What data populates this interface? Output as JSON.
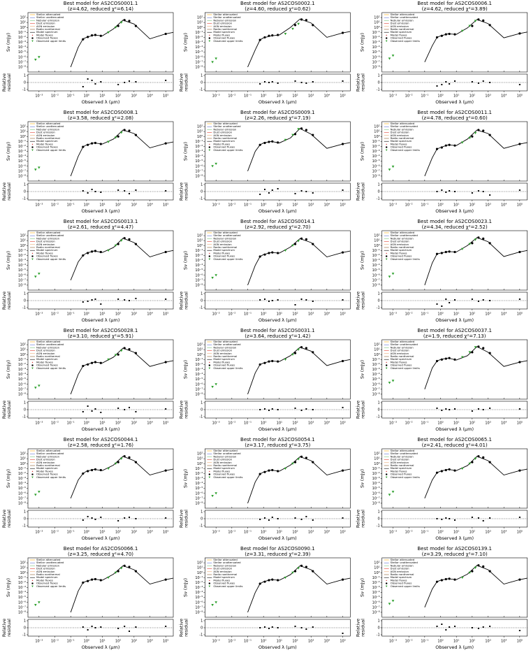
{
  "chart_data": {
    "type": "sed-grid",
    "xlabel": "Observed λ (μm)",
    "ylabel": "Sν (mJy)",
    "residual_label": [
      "Relative",
      "residual"
    ],
    "xlim": [
      0.0002,
      300000
    ],
    "xticks": [
      {
        "value": 0.001,
        "label": "10⁻³"
      },
      {
        "value": 0.01,
        "label": "10⁻²"
      },
      {
        "value": 0.1,
        "label": "10⁻¹"
      },
      {
        "value": 1,
        "label": "10⁰"
      },
      {
        "value": 10,
        "label": "10¹"
      },
      {
        "value": 100,
        "label": "10²"
      },
      {
        "value": 1000,
        "label": "10³"
      },
      {
        "value": 10000,
        "label": "10⁴"
      },
      {
        "value": 100000,
        "label": "10⁵"
      }
    ],
    "ylim": [
      1e-09,
      1000
    ],
    "yticks": [
      {
        "value": 1e-08,
        "label": "10⁻⁸"
      },
      {
        "value": 1e-07,
        "label": "10⁻⁷"
      },
      {
        "value": 1e-06,
        "label": "10⁻⁶"
      },
      {
        "value": 1e-05,
        "label": "10⁻⁵"
      },
      {
        "value": 0.0001,
        "label": "10⁻⁴"
      },
      {
        "value": 0.001,
        "label": "10⁻³"
      },
      {
        "value": 0.01,
        "label": "10⁻²"
      },
      {
        "value": 0.1,
        "label": "10⁻¹"
      },
      {
        "value": 1,
        "label": "10⁰"
      },
      {
        "value": 10,
        "label": "10¹"
      },
      {
        "value": 100,
        "label": "10²"
      }
    ],
    "residual_ylim": [
      -1.2,
      1.2
    ],
    "residual_yticks": [
      -1,
      0,
      1
    ],
    "legend": [
      {
        "name": "Stellar attenuated",
        "color": "#ffa500",
        "style": "line"
      },
      {
        "name": "Stellar unattenuated",
        "color": "#5b6fd6",
        "style": "line"
      },
      {
        "name": "Nebular emission",
        "color": "#7cc47c",
        "style": "line"
      },
      {
        "name": "Dust emission",
        "color": "#e03c31",
        "style": "line"
      },
      {
        "name": "AGN emission",
        "color": "#e8a36a",
        "style": "line"
      },
      {
        "name": "Radio nonthermal",
        "color": "#8b5a2b",
        "style": "line"
      },
      {
        "name": "Model spectrum",
        "color": "#000000",
        "style": "line"
      },
      {
        "name": "Model fluxes",
        "color": "#d62728",
        "style": "dot"
      },
      {
        "name": "Observed fluxes",
        "color": "#000000",
        "style": "circle"
      },
      {
        "name": "Observed upper limits",
        "color": "#2ca02c",
        "style": "triangle"
      }
    ],
    "model_x": [
      0.1,
      0.3,
      0.6,
      1,
      3,
      10,
      50,
      200,
      1000,
      10000,
      100000,
      300000
    ],
    "observed_x": [
      0.6,
      1.2,
      2.2,
      3.6,
      8,
      100,
      250,
      500,
      1300,
      100000
    ],
    "upper_limit_x": [
      0.0006,
      0.001,
      24,
      70,
      160
    ],
    "panels": [
      {
        "title": "Best model for AS2COS0001.1",
        "subtitle": "(z=4.62, reduced χ²=6.14)",
        "model": [
          1e-08,
          0.0001,
          0.005,
          0.01,
          0.03,
          0.02,
          0.5,
          30,
          5,
          0.005,
          0.05,
          0.1
        ],
        "observed": [
          0.004,
          0.012,
          0.025,
          0.03,
          0.02,
          2,
          30,
          20,
          2,
          0.05
        ],
        "residuals": [
          -0.6,
          0.5,
          0.3,
          -0.2,
          0.1,
          -0.3,
          0,
          0.2,
          0.1,
          0.3
        ],
        "upper_limits": [
          3e-07,
          1e-06,
          0.1,
          1,
          10
        ]
      },
      {
        "title": "Best model for AS2COS0002.1",
        "subtitle": "(z=4.60, reduced χ²=0.62)",
        "model": [
          1e-08,
          3e-05,
          0.003,
          0.008,
          0.02,
          0.03,
          1,
          50,
          8,
          0.01,
          0.08,
          0.15
        ],
        "observed": [
          0.003,
          0.01,
          0.02,
          0.025,
          0.03,
          3,
          40,
          30,
          3,
          0.08
        ],
        "residuals": [
          -0.2,
          0.1,
          0,
          0.1,
          -0.1,
          0.2,
          0,
          -0.1,
          0.1,
          0.2
        ],
        "upper_limits": [
          1e-07,
          5e-07,
          0.05,
          0.5,
          5
        ]
      },
      {
        "title": "Best model for AS2COS0006.1",
        "subtitle": "(z=4.62, reduced χ²=3.89)",
        "model": [
          1e-07,
          0.0002,
          0.01,
          0.02,
          0.05,
          0.04,
          0.8,
          40,
          6,
          0.008,
          0.06,
          0.12
        ],
        "observed": [
          0.01,
          0.02,
          0.04,
          0.05,
          0.04,
          2,
          40,
          25,
          3,
          0.06
        ],
        "residuals": [
          -0.5,
          -0.3,
          0.1,
          -0.2,
          0.2,
          0.1,
          -0.1,
          0.2,
          0,
          -0.3
        ],
        "upper_limits": [
          5e-07,
          2e-06,
          0.2,
          2,
          20
        ]
      },
      {
        "title": "Best model for AS2COS0008.1",
        "subtitle": "(z=3.58, reduced χ²=2.08)",
        "model": [
          1e-08,
          0.0001,
          0.008,
          0.02,
          0.05,
          0.03,
          0.3,
          20,
          4,
          0.005,
          0.04,
          0.08
        ],
        "observed": [
          0.008,
          0.02,
          0.04,
          0.05,
          0.03,
          1,
          20,
          15,
          2,
          0.04
        ],
        "residuals": [
          0.1,
          -0.2,
          0.3,
          0,
          -0.1,
          0.2,
          0.1,
          -0.3,
          0.2,
          0.1
        ],
        "upper_limits": [
          2e-07,
          5e-07,
          0.08,
          0.6,
          6
        ]
      },
      {
        "title": "Best model for AS2COS0009.1",
        "subtitle": "(z=2.26, reduced χ²=7.19)",
        "model": [
          1e-07,
          0.001,
          0.02,
          0.05,
          0.1,
          0.05,
          0.5,
          40,
          3,
          0.004,
          0.03,
          0.06
        ],
        "observed": [
          0.02,
          0.05,
          0.08,
          0.1,
          0.06,
          3,
          40,
          20,
          2,
          0.03
        ],
        "residuals": [
          -0.4,
          0.3,
          -0.2,
          0.2,
          0.4,
          -0.3,
          0.1,
          0,
          -0.2,
          0.2
        ],
        "upper_limits": [
          1e-06,
          3e-06,
          0.2,
          2,
          30
        ]
      },
      {
        "title": "Best model for AS2COS0011.1",
        "subtitle": "(z=4.78, reduced χ²=0.60)",
        "model": [
          1e-08,
          5e-05,
          0.003,
          0.006,
          0.02,
          0.015,
          0.3,
          20,
          4,
          0.004,
          0.03,
          0.06
        ],
        "observed": [
          0.003,
          0.006,
          0.015,
          0.02,
          0.015,
          1,
          20,
          15,
          2,
          0.03
        ],
        "residuals": [
          0,
          0.2,
          -0.1,
          0.1,
          0,
          -0.2,
          0.1,
          0,
          -0.5,
          0.2
        ],
        "upper_limits": [
          2e-07,
          8e-07,
          0.06,
          0.5,
          5
        ]
      },
      {
        "title": "Best model for AS2COS0013.1",
        "subtitle": "(z=2.61, reduced χ²=4.47)",
        "model": [
          1e-07,
          0.0005,
          0.01,
          0.03,
          0.08,
          0.04,
          0.4,
          30,
          4,
          0.005,
          0.05,
          0.1
        ],
        "observed": [
          0.01,
          0.03,
          0.06,
          0.08,
          0.05,
          2,
          30,
          18,
          2,
          0.05
        ],
        "residuals": [
          -0.2,
          -0.1,
          0.1,
          0.2,
          -0.5,
          0.2,
          0.1,
          0,
          0.3,
          0.2
        ],
        "upper_limits": [
          5e-07,
          2e-06,
          0.1,
          1,
          10
        ]
      },
      {
        "title": "Best model for AS2COS0014.1",
        "subtitle": "(z=2.92, reduced χ²=2.70)",
        "model": [
          1e-08,
          0.0001,
          0.006,
          0.015,
          0.04,
          0.03,
          0.5,
          25,
          4,
          0.005,
          0.04,
          0.08
        ],
        "observed": [
          0.006,
          0.015,
          0.03,
          0.04,
          0.03,
          2,
          25,
          18,
          2,
          0.04
        ],
        "residuals": [
          0.1,
          0.2,
          -0.1,
          0,
          0.1,
          -0.6,
          0.2,
          0.1,
          -0.1,
          0.1
        ],
        "upper_limits": [
          3e-07,
          1e-06,
          0.1,
          1,
          8
        ]
      },
      {
        "title": "Best model for AS2COS0023.1",
        "subtitle": "(z=4.34, reduced χ²=2.52)",
        "model": [
          1e-08,
          0.0003,
          0.02,
          0.03,
          0.06,
          0.05,
          1,
          40,
          6,
          0.006,
          0.05,
          0.1
        ],
        "observed": [
          0.02,
          0.03,
          0.05,
          0.06,
          0.05,
          3,
          40,
          25,
          3,
          0.05
        ],
        "residuals": [
          -0.5,
          -0.8,
          0.2,
          -0.3,
          0.1,
          0.2,
          -0.1,
          0.1,
          0,
          0.2
        ],
        "upper_limits": [
          5e-07,
          2e-06,
          0.2,
          2,
          15
        ]
      },
      {
        "title": "Best model for AS2COS0028.1",
        "subtitle": "(z=3.10, reduced χ²=5.91)",
        "model": [
          1e-08,
          0.0001,
          0.005,
          0.01,
          0.03,
          0.02,
          0.3,
          20,
          3,
          0.004,
          0.03,
          0.06
        ],
        "observed": [
          0.005,
          0.01,
          0.02,
          0.03,
          0.02,
          1,
          20,
          12,
          2,
          0.03
        ],
        "residuals": [
          -0.3,
          0.5,
          -0.2,
          0.1,
          -0.4,
          0.2,
          0,
          0.3,
          -0.3,
          0.1
        ],
        "upper_limits": [
          2e-07,
          5e-07,
          0.1,
          0.8,
          6
        ]
      },
      {
        "title": "Best model for AS2COS0031.1",
        "subtitle": "(z=3.64, reduced χ²=1.42)",
        "model": [
          1e-08,
          0.0002,
          0.01,
          0.02,
          0.05,
          0.04,
          0.6,
          30,
          5,
          0.006,
          0.05,
          0.1
        ],
        "observed": [
          0.01,
          0.02,
          0.04,
          0.05,
          0.04,
          2,
          30,
          20,
          3,
          0.05
        ],
        "residuals": [
          0,
          0.1,
          -0.1,
          0.1,
          0,
          0.2,
          -0.1,
          0.1,
          0,
          0.3
        ],
        "upper_limits": [
          3e-07,
          1e-06,
          0.1,
          1,
          10
        ]
      },
      {
        "title": "Best model for AS2COS0037.1",
        "subtitle": "(z=1.9, reduced χ²=7.13)",
        "model": [
          1e-07,
          0.002,
          0.05,
          0.1,
          0.2,
          0.08,
          0.6,
          40,
          3,
          0.004,
          0.03,
          0.06
        ],
        "observed": [
          0.05,
          0.1,
          0.15,
          0.2,
          0.1,
          3,
          40,
          20,
          2,
          0.03
        ],
        "residuals": [
          0.2,
          -0.1,
          0.1,
          0,
          0.1,
          -0.2,
          0.1,
          0,
          0.2,
          0.1
        ],
        "upper_limits": [
          2e-06,
          5e-06,
          0.3,
          3,
          30
        ]
      },
      {
        "title": "Best model for AS2COS0044.1",
        "subtitle": "(z=2.58, reduced χ²=1.76)",
        "model": [
          1e-07,
          0.0005,
          0.01,
          0.03,
          0.07,
          0.04,
          0.5,
          30,
          4,
          0.005,
          0.04,
          0.08
        ],
        "observed": [
          0.01,
          0.03,
          0.05,
          0.07,
          0.05,
          2,
          30,
          18,
          2,
          0.04
        ],
        "residuals": [
          -0.2,
          0.3,
          0.1,
          -0.1,
          0.2,
          -0.3,
          0.1,
          0.2,
          0,
          0.1
        ],
        "upper_limits": [
          5e-07,
          2e-06,
          0.1,
          1,
          10
        ]
      },
      {
        "title": "Best model for AS2COS0054.1",
        "subtitle": "(z=3.17, reduced χ²=3.75)",
        "model": [
          1e-08,
          0.0002,
          0.008,
          0.02,
          0.05,
          0.03,
          0.5,
          25,
          4,
          0.005,
          0.04,
          0.08
        ],
        "observed": [
          0.008,
          0.02,
          0.04,
          0.05,
          0.03,
          2,
          25,
          15,
          2,
          0.04
        ],
        "residuals": [
          -0.1,
          0.1,
          -0.2,
          0.2,
          0,
          0.1,
          -0.1,
          0.3,
          -0.2,
          0.1
        ],
        "upper_limits": [
          3e-07,
          1e-06,
          0.1,
          1,
          8
        ]
      },
      {
        "title": "Best model for AS2COS0065.1",
        "subtitle": "(z=2.41, reduced χ²=4.01)",
        "model": [
          1e-07,
          0.0005,
          0.015,
          0.03,
          0.07,
          0.04,
          0.4,
          30,
          4,
          0.005,
          0.04,
          0.08
        ],
        "observed": [
          0.015,
          0.03,
          0.05,
          0.07,
          0.04,
          2,
          30,
          18,
          2,
          0.04
        ],
        "residuals": [
          0,
          -0.1,
          0.1,
          0,
          -0.2,
          0.2,
          0.1,
          -0.3,
          0.1,
          0.2
        ],
        "upper_limits": [
          5e-07,
          2e-06,
          0.1,
          1,
          10
        ]
      },
      {
        "title": "Best model for AS2COS0066.1",
        "subtitle": "(z=3.25, reduced χ²=4.70)",
        "model": [
          1e-08,
          0.0002,
          0.01,
          0.02,
          0.05,
          0.03,
          0.5,
          25,
          4,
          0.005,
          0.04,
          0.08
        ],
        "observed": [
          0.01,
          0.02,
          0.04,
          0.05,
          0.03,
          2,
          25,
          15,
          2,
          0.04
        ],
        "residuals": [
          0.1,
          -0.3,
          0.2,
          0,
          0.1,
          -0.1,
          0.2,
          -0.5,
          0.1,
          0.2
        ],
        "upper_limits": [
          3e-07,
          1e-06,
          0.1,
          1,
          8
        ]
      },
      {
        "title": "Best model for AS2COS0090.1",
        "subtitle": "(z=3.31, reduced χ²=2.39)",
        "model": [
          1e-08,
          0.0001,
          0.006,
          0.015,
          0.04,
          0.03,
          0.4,
          25,
          4,
          0.005,
          0.04,
          0.08
        ],
        "observed": [
          0.006,
          0.015,
          0.03,
          0.04,
          0.03,
          2,
          25,
          15,
          2,
          0.04
        ],
        "residuals": [
          0,
          0.1,
          -0.1,
          0.1,
          0,
          0.2,
          0,
          -0.2,
          0.1,
          -0.8
        ],
        "upper_limits": [
          3e-07,
          1e-06,
          0.1,
          1,
          8
        ]
      },
      {
        "title": "Best model for AS2COS0139.1",
        "subtitle": "(z=3.29, reduced χ²=7.10)",
        "model": [
          1e-07,
          0.0005,
          0.015,
          0.03,
          0.06,
          0.04,
          0.5,
          30,
          4,
          0.005,
          0.04,
          0.08
        ],
        "observed": [
          0.015,
          0.03,
          0.05,
          0.06,
          0.04,
          2,
          30,
          18,
          2,
          0.04
        ],
        "residuals": [
          0.2,
          0.5,
          -0.3,
          0.1,
          0.2,
          0,
          -0.1,
          0.1,
          0.2,
          -0.4
        ],
        "upper_limits": [
          5e-07,
          2e-06,
          0.1,
          1,
          10
        ]
      }
    ]
  }
}
